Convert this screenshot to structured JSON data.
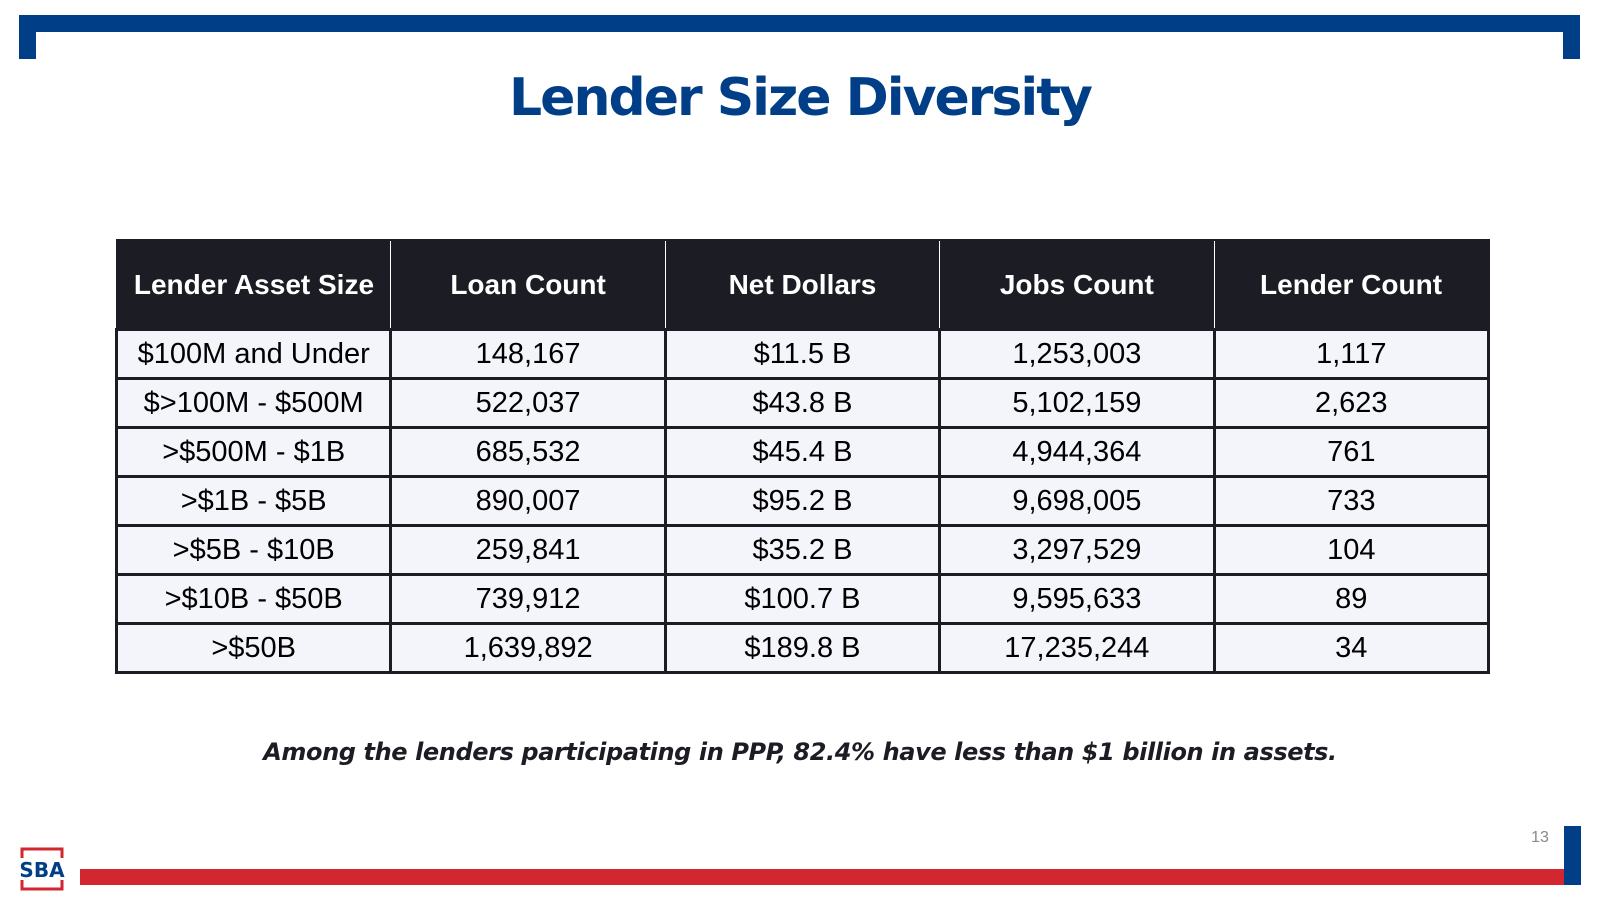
{
  "slide": {
    "title": "Lender Size Diversity",
    "footnote": "Among the lenders participating in PPP, 82.4% have less than $1 billion in assets.",
    "page_number": "13",
    "logo_text": "SBA"
  },
  "table": {
    "headers": [
      "Lender Asset Size",
      "Loan Count",
      "Net Dollars",
      "Jobs Count",
      "Lender Count"
    ],
    "rows": [
      [
        "$100M and Under",
        "148,167",
        "$11.5 B",
        "1,253,003",
        "1,117"
      ],
      [
        "$>100M -  $500M",
        "522,037",
        "$43.8 B",
        "5,102,159",
        "2,623"
      ],
      [
        ">$500M - $1B",
        "685,532",
        "$45.4 B",
        "4,944,364",
        "761"
      ],
      [
        ">$1B - $5B",
        "890,007",
        "$95.2 B",
        "9,698,005",
        "733"
      ],
      [
        ">$5B - $10B",
        "259,841",
        "$35.2 B",
        "3,297,529",
        "104"
      ],
      [
        ">$10B - $50B",
        "739,912",
        "$100.7 B",
        "9,595,633",
        "89"
      ],
      [
        ">$50B",
        "1,639,892",
        "$189.8 B",
        "17,235,244",
        "34"
      ]
    ]
  },
  "colors": {
    "brand_blue": "#003f87",
    "brand_red": "#d22630",
    "header_bg": "#1c1c24",
    "cell_bg": "#f4f4fb"
  }
}
